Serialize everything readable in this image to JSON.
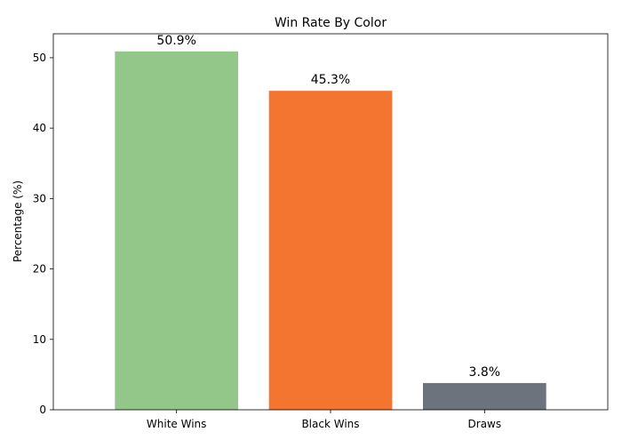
{
  "chart_data": {
    "type": "bar",
    "title": "Win Rate By Color",
    "xlabel": "",
    "ylabel": "Percentage (%)",
    "categories": [
      "White Wins",
      "Black Wins",
      "Draws"
    ],
    "values": [
      50.9,
      45.3,
      3.8
    ],
    "value_labels": [
      "50.9%",
      "45.3%",
      "3.8%"
    ],
    "colors": [
      "#93c78a",
      "#f3752f",
      "#6c737d"
    ],
    "ylim": [
      0,
      53.4
    ],
    "yticks": [
      0,
      10,
      20,
      30,
      40,
      50
    ],
    "ytick_labels": [
      "0",
      "10",
      "20",
      "30",
      "40",
      "50"
    ],
    "grid": false,
    "legend": "none"
  }
}
